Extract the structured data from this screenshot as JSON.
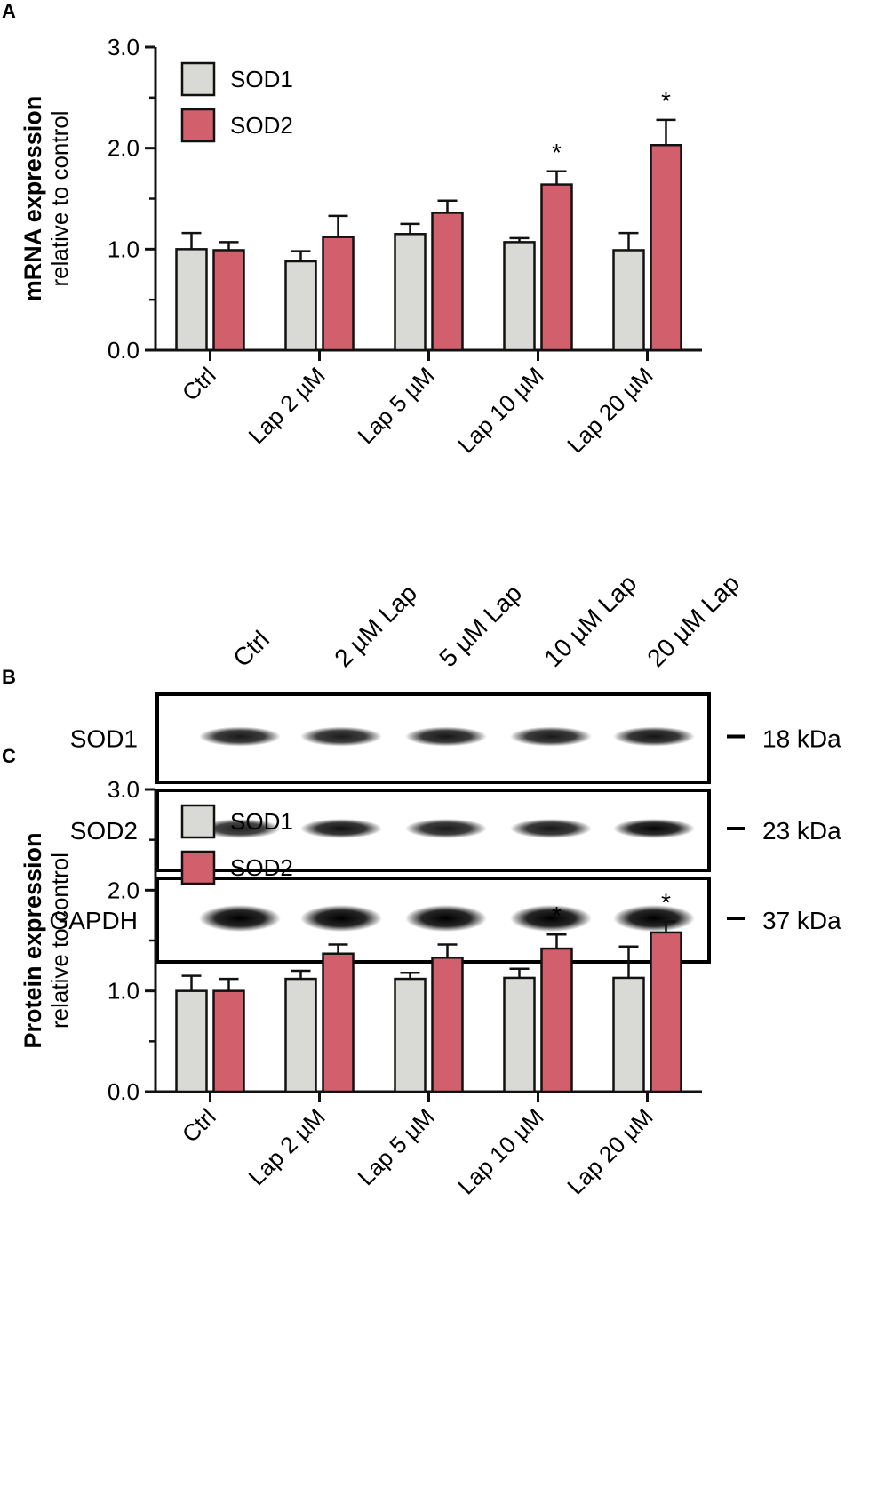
{
  "colors": {
    "sod1": "#d9d9d6",
    "sod2": "#d2606c",
    "axis": "#111111"
  },
  "chart_data": [
    {
      "panel": "A",
      "type": "bar",
      "ylabel_bold": "mRNA expression",
      "ylabel": "relative to control",
      "ylim": [
        0,
        3
      ],
      "yticks": [
        "0.0",
        "1.0",
        "2.0",
        "3.0"
      ],
      "categories": [
        "Ctrl",
        "Lap 2 µM",
        "Lap 5 µM",
        "Lap 10 µM",
        "Lap 20 µM"
      ],
      "legend_position": "top-left",
      "series": [
        {
          "name": "SOD1",
          "values": [
            1.0,
            0.88,
            1.15,
            1.07,
            0.99
          ],
          "errors": [
            0.16,
            0.1,
            0.1,
            0.04,
            0.17
          ],
          "stars": [
            false,
            false,
            false,
            false,
            false
          ]
        },
        {
          "name": "SOD2",
          "values": [
            0.99,
            1.12,
            1.36,
            1.64,
            2.03
          ],
          "errors": [
            0.08,
            0.21,
            0.12,
            0.13,
            0.25
          ],
          "stars": [
            false,
            false,
            false,
            true,
            true
          ]
        }
      ],
      "star_symbol": "*"
    },
    {
      "panel": "C",
      "type": "bar",
      "ylabel_bold": "Protein expression",
      "ylabel": "relative to control",
      "ylim": [
        0,
        3
      ],
      "yticks": [
        "0.0",
        "1.0",
        "2.0",
        "3.0"
      ],
      "categories": [
        "Ctrl",
        "Lap 2 µM",
        "Lap 5 µM",
        "Lap 10 µM",
        "Lap 20 µM"
      ],
      "legend_position": "top-left",
      "series": [
        {
          "name": "SOD1",
          "values": [
            1.0,
            1.12,
            1.12,
            1.13,
            1.13
          ],
          "errors": [
            0.15,
            0.08,
            0.06,
            0.09,
            0.31
          ],
          "stars": [
            false,
            false,
            false,
            false,
            false
          ]
        },
        {
          "name": "SOD2",
          "values": [
            1.0,
            1.37,
            1.33,
            1.42,
            1.58
          ],
          "errors": [
            0.12,
            0.09,
            0.13,
            0.14,
            0.11
          ],
          "stars": [
            false,
            false,
            false,
            true,
            true
          ]
        }
      ],
      "star_symbol": "*"
    }
  ],
  "blot": {
    "panel": "B",
    "lanes": [
      "Ctrl",
      "2 µM Lap",
      "5 µM Lap",
      "10 µM Lap",
      "20 µM Lap"
    ],
    "rows": [
      {
        "label": "SOD1",
        "kda": "18 kDa",
        "intensities": [
          0.78,
          0.76,
          0.8,
          0.78,
          0.82
        ]
      },
      {
        "label": "SOD2",
        "kda": "23 kDa",
        "intensities": [
          0.72,
          0.85,
          0.78,
          0.8,
          0.95
        ]
      },
      {
        "label": "GAPDH",
        "kda": "37 kDa",
        "intensities": [
          1.0,
          1.0,
          1.0,
          1.0,
          1.0
        ]
      }
    ]
  }
}
